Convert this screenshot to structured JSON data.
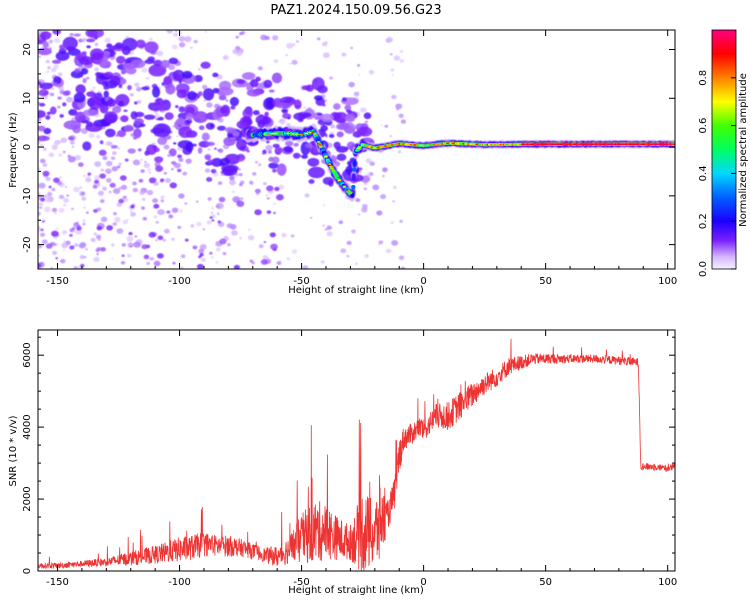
{
  "title": "PAZ1.2024.150.09.56.G23",
  "chart_data": [
    {
      "type": "heatmap",
      "xlabel": "Height of straight line (km)",
      "ylabel": "Frequency (Hz)",
      "xlim": [
        -158,
        103
      ],
      "ylim": [
        -25,
        24
      ],
      "xticks": [
        -150,
        -100,
        -50,
        0,
        50,
        100
      ],
      "yticks": [
        -20,
        -10,
        0,
        10,
        20
      ],
      "colorbar": {
        "label": "Normalized spectral amplitude",
        "range": [
          0,
          1
        ],
        "ticks": [
          "0.0",
          "0.2",
          "0.4",
          "0.6",
          "0.8"
        ],
        "colors": [
          "#f7f0ff",
          "#d6b8ff",
          "#7a1fff",
          "#1a00ff",
          "#0060ff",
          "#00d8ff",
          "#00ff60",
          "#40ff00",
          "#ffff00",
          "#ff8000",
          "#ff0000",
          "#ff0080"
        ]
      },
      "ridge": [
        {
          "x": -70,
          "y": 2.5
        },
        {
          "x": -60,
          "y": 2.8
        },
        {
          "x": -55,
          "y": 2.8
        },
        {
          "x": -50,
          "y": 2.5
        },
        {
          "x": -45,
          "y": 3.2
        },
        {
          "x": -42,
          "y": 0
        },
        {
          "x": -38,
          "y": -4
        },
        {
          "x": -35,
          "y": -6.5
        },
        {
          "x": -32,
          "y": -8.5
        },
        {
          "x": -29,
          "y": -10
        },
        {
          "x": -28,
          "y": -1
        },
        {
          "x": -25,
          "y": 0.5
        },
        {
          "x": -20,
          "y": -0.2
        },
        {
          "x": -10,
          "y": 0.7
        },
        {
          "x": 0,
          "y": 0.3
        },
        {
          "x": 10,
          "y": 0.8
        },
        {
          "x": 25,
          "y": 0.5
        },
        {
          "x": 50,
          "y": 0.6
        },
        {
          "x": 75,
          "y": 0.6
        },
        {
          "x": 103,
          "y": 0.6
        }
      ]
    },
    {
      "type": "line",
      "xlabel": "Height of straight line (km)",
      "ylabel": "SNR (10 * v/v)",
      "xlim": [
        -158,
        103
      ],
      "ylim": [
        0,
        6700
      ],
      "xticks": [
        -150,
        -100,
        -50,
        0,
        50,
        100
      ],
      "yticks": [
        0,
        2000,
        4000,
        6000
      ],
      "series": [
        {
          "color": "#ee3333",
          "x": [
            -158,
            -150,
            -140,
            -130,
            -120,
            -110,
            -100,
            -95,
            -90,
            -85,
            -80,
            -75,
            -70,
            -65,
            -60,
            -55,
            -50,
            -45,
            -40,
            -35,
            -30,
            -25,
            -20,
            -18,
            -15,
            -12,
            -10,
            -8,
            -5,
            -2,
            0,
            5,
            10,
            15,
            20,
            25,
            30,
            35,
            40,
            45,
            50,
            60,
            70,
            80,
            88,
            89,
            90,
            95,
            100,
            103
          ],
          "y": [
            150,
            150,
            200,
            250,
            350,
            450,
            600,
            650,
            750,
            700,
            700,
            650,
            550,
            450,
            400,
            600,
            900,
            1100,
            1100,
            900,
            800,
            1100,
            1000,
            1400,
            1500,
            2100,
            3200,
            3700,
            3800,
            4000,
            3900,
            4300,
            4300,
            4600,
            4900,
            5200,
            5400,
            5700,
            5800,
            5900,
            5900,
            5900,
            5900,
            5850,
            5800,
            2900,
            2900,
            2900,
            2850,
            2900
          ],
          "spread": [
            80,
            80,
            90,
            120,
            200,
            250,
            350,
            350,
            350,
            300,
            300,
            250,
            220,
            200,
            300,
            400,
            700,
            900,
            800,
            600,
            500,
            1200,
            900,
            1300,
            400,
            500,
            500,
            350,
            300,
            300,
            300,
            350,
            400,
            400,
            350,
            300,
            280,
            250,
            200,
            150,
            150,
            120,
            120,
            120,
            120,
            100,
            100,
            100,
            100,
            100
          ]
        }
      ]
    }
  ]
}
